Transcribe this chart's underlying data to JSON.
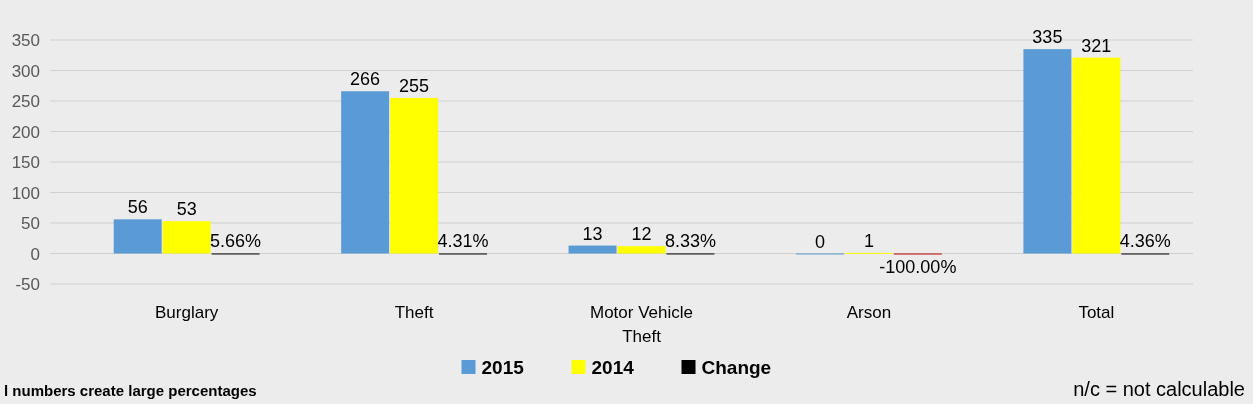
{
  "chart_data": {
    "type": "bar",
    "categories": [
      "Burglary",
      "Theft",
      "Motor Vehicle Theft",
      "Arson",
      "Total"
    ],
    "series": [
      {
        "name": "2015",
        "color": "#5b9bd5",
        "values": [
          56,
          266,
          13,
          0,
          335
        ],
        "value_labels": [
          "56",
          "266",
          "13",
          "0",
          "335"
        ]
      },
      {
        "name": "2014",
        "color": "#ffff00",
        "values": [
          53,
          255,
          12,
          1,
          321
        ],
        "value_labels": [
          "53",
          "255",
          "12",
          "1",
          "321"
        ]
      },
      {
        "name": "Change",
        "color": "#000000",
        "colors": [
          "#000000",
          "#000000",
          "#000000",
          "#c00000",
          "#000000"
        ],
        "values": [
          0.0566,
          0.0431,
          0.0833,
          -1,
          0.0436
        ],
        "value_labels": [
          "5.66%",
          "4.31%",
          "8.33%",
          "-100.00%",
          "4.36%"
        ]
      }
    ],
    "ylim": [
      -50,
      350
    ],
    "yticks": [
      -50,
      0,
      50,
      100,
      150,
      200,
      250,
      300,
      350
    ],
    "grid": "y",
    "legend": "bottom",
    "annotations": [
      "l numbers create large percentages",
      "n/c = not calculable"
    ]
  }
}
